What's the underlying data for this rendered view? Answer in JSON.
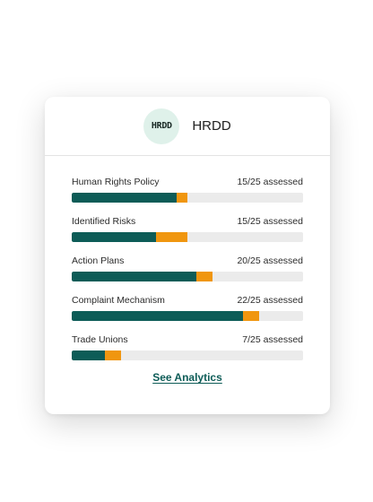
{
  "card": {
    "badge_text": "HRDD",
    "title": "HRDD",
    "link_label": "See Analytics"
  },
  "colors": {
    "primary": "#0d5c57",
    "secondary": "#f0960f",
    "track": "#ebebeb"
  },
  "metrics": [
    {
      "label": "Human Rights Policy",
      "status": "15/25 assessed",
      "primary_fraction": 0.455,
      "secondary_fraction": 0.045
    },
    {
      "label": "Identified Risks",
      "status": "15/25 assessed",
      "primary_fraction": 0.365,
      "secondary_fraction": 0.135
    },
    {
      "label": "Action Plans",
      "status": "20/25 assessed",
      "primary_fraction": 0.54,
      "secondary_fraction": 0.07
    },
    {
      "label": "Complaint Mechanism",
      "status": "22/25 assessed",
      "primary_fraction": 0.74,
      "secondary_fraction": 0.07
    },
    {
      "label": "Trade Unions",
      "status": "7/25 assessed",
      "primary_fraction": 0.145,
      "secondary_fraction": 0.07
    }
  ]
}
